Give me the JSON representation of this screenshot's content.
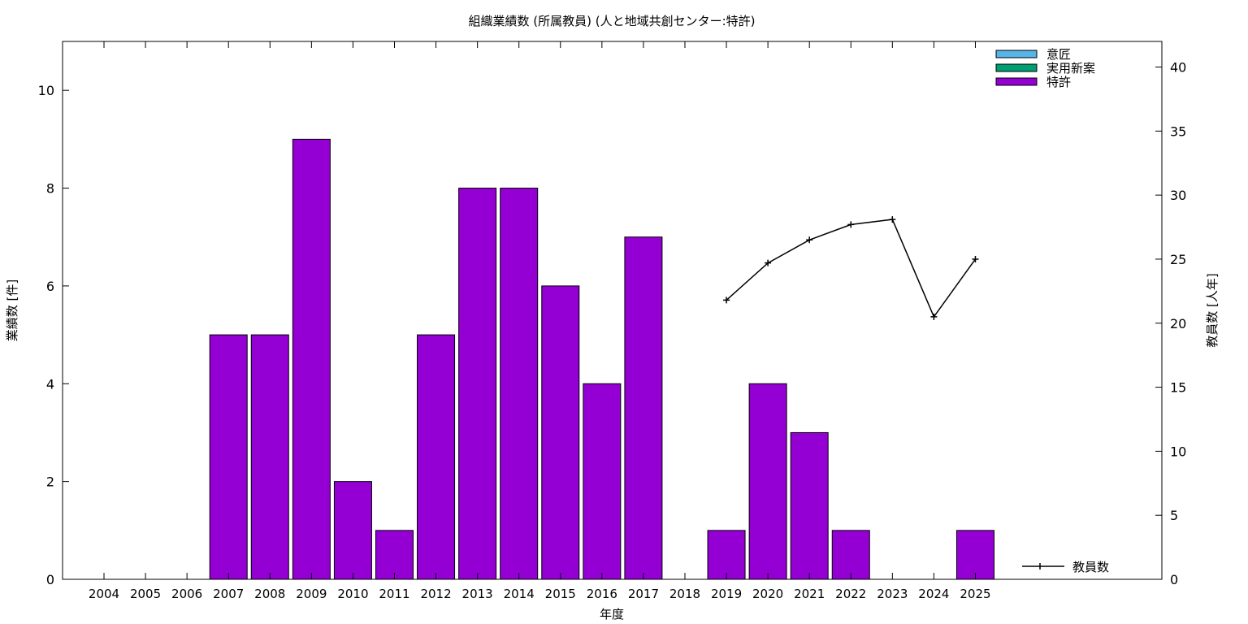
{
  "chart_data": {
    "type": "bar",
    "title": "組織業績数 (所属教員) (人と地域共創センター:特許)",
    "xlabel": "年度",
    "ylabel": "業績数 [件]",
    "y2label": "教員数 [人年]",
    "categories": [
      "2004",
      "2005",
      "2006",
      "2007",
      "2008",
      "2009",
      "2010",
      "2011",
      "2012",
      "2013",
      "2014",
      "2015",
      "2016",
      "2017",
      "2018",
      "2019",
      "2020",
      "2021",
      "2022",
      "2023",
      "2024",
      "2025"
    ],
    "ylim": [
      0,
      11
    ],
    "y_ticks": [
      0,
      2,
      4,
      6,
      8,
      10
    ],
    "y2lim": [
      0,
      42
    ],
    "y2_ticks": [
      0,
      5,
      10,
      15,
      20,
      25,
      30,
      35,
      40
    ],
    "legend_position": "top-right",
    "series": [
      {
        "name": "意匠",
        "color": "#56b4e9",
        "values": [
          0,
          0,
          0,
          0,
          0,
          0,
          0,
          0,
          0,
          0,
          0,
          0,
          0,
          0,
          0,
          0,
          0,
          0,
          0,
          0,
          0,
          0
        ]
      },
      {
        "name": "実用新案",
        "color": "#009e73",
        "values": [
          0,
          0,
          0,
          0,
          0,
          0,
          0,
          0,
          0,
          0,
          0,
          0,
          0,
          0,
          0,
          0,
          0,
          0,
          0,
          0,
          0,
          0
        ]
      },
      {
        "name": "特許",
        "color": "#9400d3",
        "values": [
          0,
          0,
          0,
          5,
          5,
          9,
          2,
          1,
          5,
          8,
          8,
          6,
          4,
          7,
          0,
          1,
          4,
          3,
          1,
          0,
          0,
          1
        ]
      }
    ],
    "line_series": {
      "name": "教員数",
      "axis": "right",
      "color": "#000000",
      "x": [
        "2019",
        "2020",
        "2021",
        "2022",
        "2023",
        "2024",
        "2025"
      ],
      "values": [
        21.8,
        24.7,
        26.5,
        27.7,
        28.1,
        20.5,
        25.0
      ]
    }
  }
}
